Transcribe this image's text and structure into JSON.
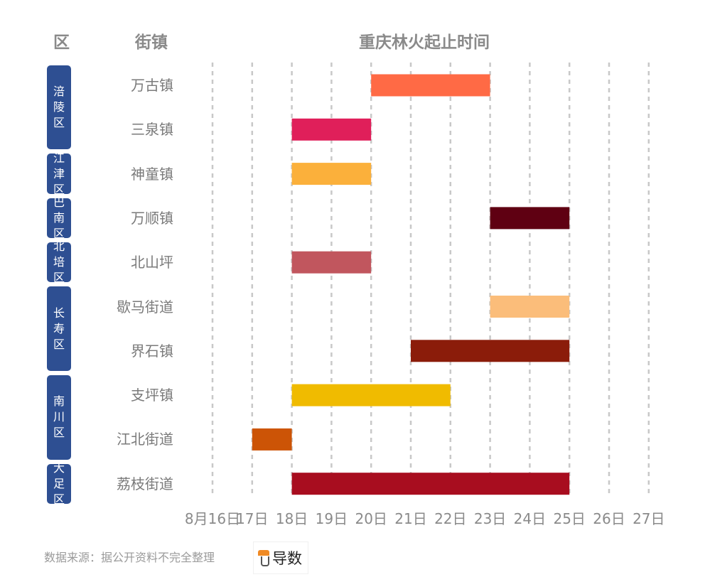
{
  "headers": {
    "district": "区",
    "town": "街镇",
    "title": "重庆林火起止时间"
  },
  "districts": [
    {
      "name": "涪陵区",
      "rows": [
        0,
        1
      ]
    },
    {
      "name": "江津区",
      "rows": [
        2,
        2
      ]
    },
    {
      "name": "巴南区",
      "rows": [
        3,
        3
      ]
    },
    {
      "name": "北培区",
      "rows": [
        4,
        4
      ]
    },
    {
      "name": "长寿区",
      "rows": [
        5,
        6
      ]
    },
    {
      "name": "南川区",
      "rows": [
        7,
        8
      ]
    },
    {
      "name": "大足区",
      "rows": [
        9,
        9
      ]
    }
  ],
  "chart_data": {
    "type": "bar",
    "orientation": "horizontal-range",
    "title": "重庆林火起止时间",
    "categories": [
      "万古镇",
      "三泉镇",
      "神童镇",
      "万顺镇",
      "北山坪",
      "歇马街道",
      "界石镇",
      "支坪镇",
      "江北街道",
      "荔枝街道"
    ],
    "ranges": [
      {
        "category": "万古镇",
        "start": 20,
        "end": 23,
        "color": "#ff6a45"
      },
      {
        "category": "三泉镇",
        "start": 18,
        "end": 20,
        "color": "#e01f5a"
      },
      {
        "category": "神童镇",
        "start": 18,
        "end": 20,
        "color": "#fbb03b"
      },
      {
        "category": "万顺镇",
        "start": 23,
        "end": 25,
        "color": "#5f0012"
      },
      {
        "category": "北山坪",
        "start": 18,
        "end": 20,
        "color": "#c1565e"
      },
      {
        "category": "歇马街道",
        "start": 23,
        "end": 25,
        "color": "#fbbd7a"
      },
      {
        "category": "界石镇",
        "start": 21,
        "end": 25,
        "color": "#8b1c0a"
      },
      {
        "category": "支坪镇",
        "start": 18,
        "end": 22,
        "color": "#f0bb00"
      },
      {
        "category": "江北街道",
        "start": 17,
        "end": 18,
        "color": "#cc5406"
      },
      {
        "category": "荔枝街道",
        "start": 18,
        "end": 25,
        "color": "#a80d1f"
      }
    ],
    "xlim": [
      16,
      27
    ],
    "xticks": [
      16,
      17,
      18,
      19,
      20,
      21,
      22,
      23,
      24,
      25,
      26,
      27
    ],
    "xtick_labels": [
      "8月16日",
      "17日",
      "18日",
      "19日",
      "20日",
      "21日",
      "22日",
      "23日",
      "24日",
      "25日",
      "26日",
      "27日"
    ],
    "grid": "vertical-dashed"
  },
  "footer": {
    "source": "数据来源：据公开资料不完全整理",
    "logo_text": "导数"
  }
}
